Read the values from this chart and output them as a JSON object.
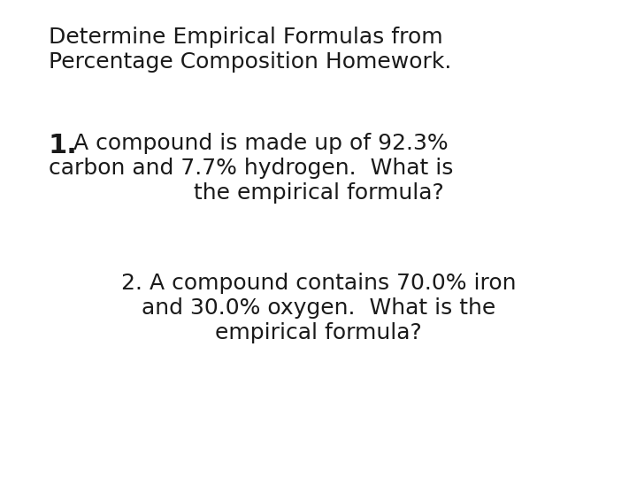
{
  "background_color": "#ffffff",
  "title_line1": "Determine Empirical Formulas from",
  "title_line2": "Percentage Composition Homework.",
  "q1_number": "1.",
  "q1_rest_line1": " A compound is made up of 92.3%",
  "q1_line2": "carbon and 7.7% hydrogen.  What is",
  "q1_line3": "the empirical formula?",
  "q2_line1": "2. A compound contains 70.0% iron",
  "q2_line2": "and 30.0% oxygen.  What is the",
  "q2_line3": "empirical formula?",
  "text_color": "#1a1a1a",
  "title_fontsize": 18,
  "q_fontsize": 18,
  "q1_number_fontsize": 22,
  "font_family": "DejaVu Sans"
}
